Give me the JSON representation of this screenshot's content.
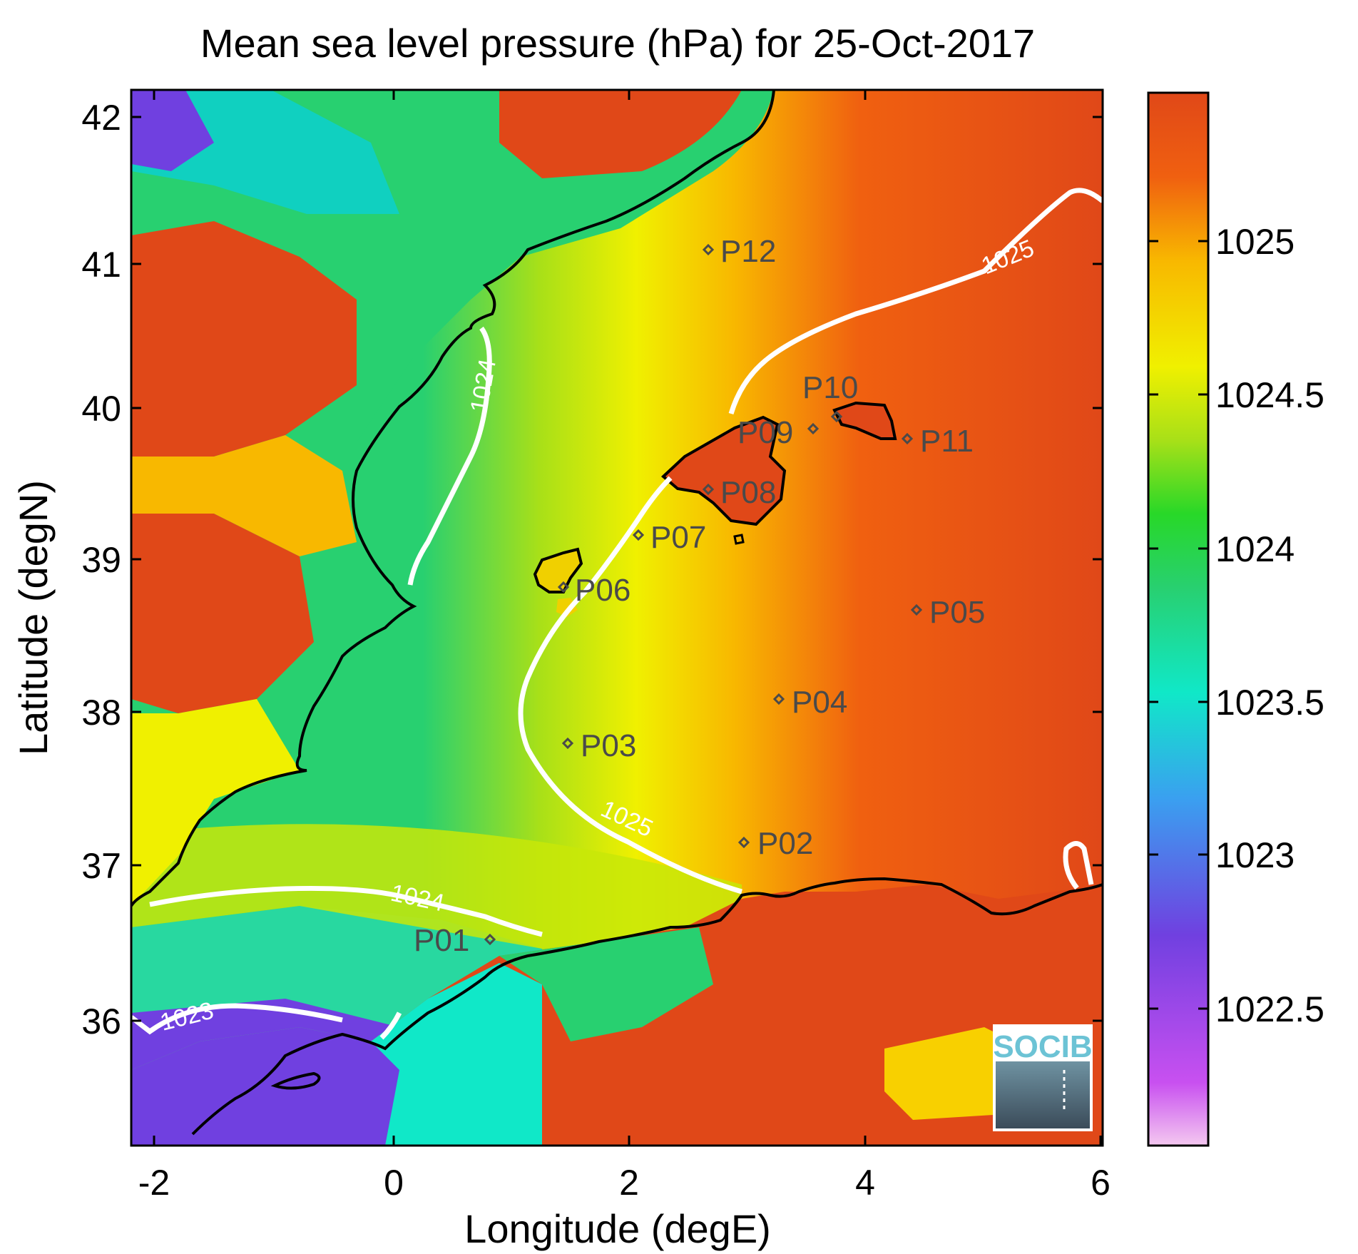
{
  "title": "Mean sea level pressure (hPa) for 25-Oct-2017",
  "xlabel": "Longitude (degE)",
  "ylabel": "Latitude (degN)",
  "x_ticks": [
    "-2",
    "0",
    "2",
    "4",
    "6"
  ],
  "y_ticks": [
    "36",
    "37",
    "38",
    "39",
    "40",
    "41",
    "42"
  ],
  "colorbar": {
    "ticks": [
      "1022.5",
      "1023",
      "1023.5",
      "1024",
      "1024.5",
      "1025"
    ],
    "colors": [
      "#f4c8f0",
      "#c850f0",
      "#7040e0",
      "#3aa0f0",
      "#10e8c8",
      "#28d070",
      "#28d828",
      "#a8e018",
      "#f0f000",
      "#f8b800",
      "#f06010",
      "#e04818"
    ]
  },
  "contour_labels": [
    "1024",
    "1025",
    "1025",
    "1024",
    "1023"
  ],
  "stations": [
    "P01",
    "P02",
    "P03",
    "P04",
    "P05",
    "P06",
    "P07",
    "P08",
    "P09",
    "P10",
    "P11",
    "P12"
  ],
  "logo_text": "SOCIB",
  "colors": {
    "high_pressure": "#e04818",
    "mid_pressure": "#f0f000",
    "low_pressure": "#28d070",
    "contour": "#ffffff",
    "coastline": "#000000",
    "station_marker": "#4a4a4a"
  }
}
